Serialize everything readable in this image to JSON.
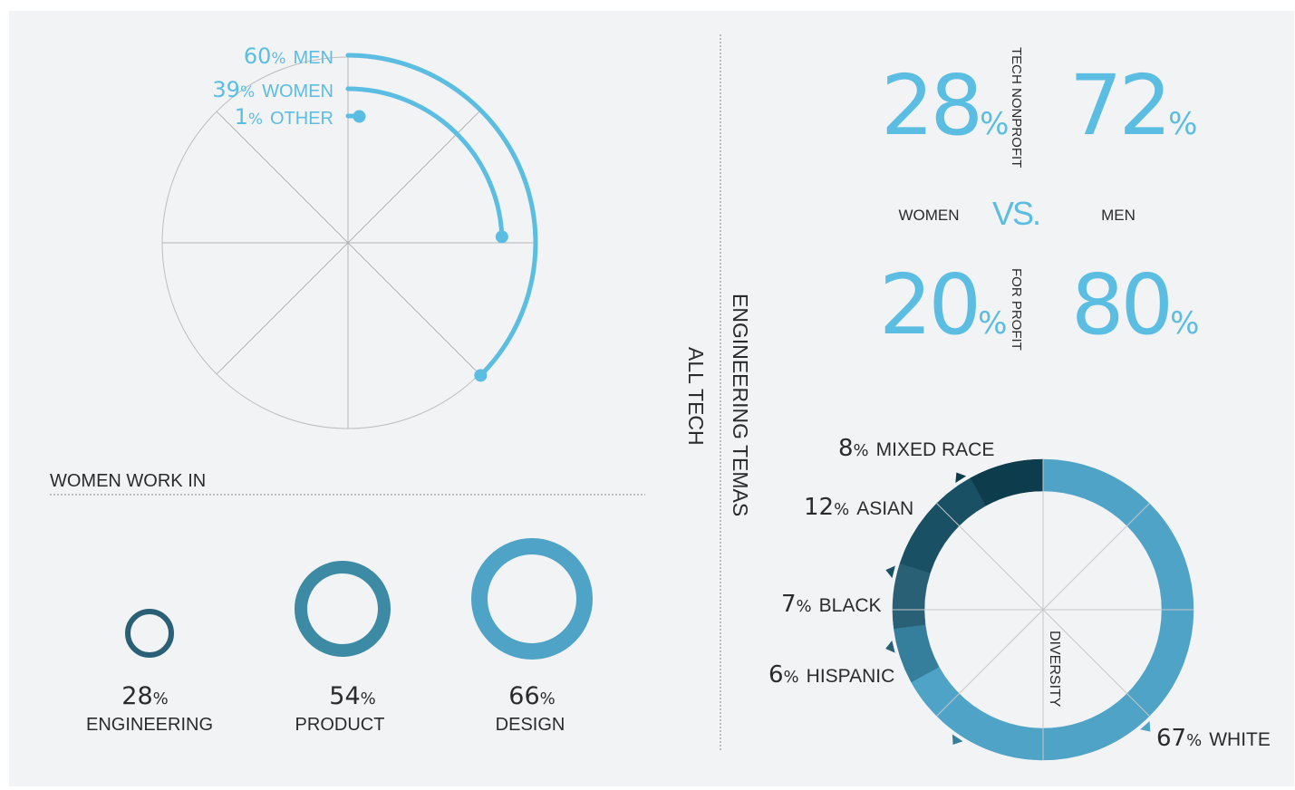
{
  "colors": {
    "background": "#f1f3f5",
    "accent": "#5bbde2",
    "dark_text": "#2b2b2b",
    "grid": "#b5b5b5"
  },
  "gender_radial": {
    "items": [
      {
        "value": 60,
        "pct": "%",
        "label": "MEN"
      },
      {
        "value": 39,
        "pct": "%",
        "label": "WOMEN"
      },
      {
        "value": 1,
        "pct": "%",
        "label": "OTHER"
      }
    ]
  },
  "women_work_in": {
    "heading": "WOMEN WORK IN",
    "rings": [
      {
        "value": 28,
        "pct": "%",
        "label": "ENGINEERING",
        "color": "#2a6075"
      },
      {
        "value": 54,
        "pct": "%",
        "label": "PRODUCT",
        "color": "#3c8aa3"
      },
      {
        "value": 66,
        "pct": "%",
        "label": "DESIGN",
        "color": "#4fa3c6"
      }
    ]
  },
  "vertical_labels": {
    "all_tech": "ALL TECH",
    "engineering": "ENGINEERING TEMAS"
  },
  "comparison": {
    "nonprofit_label": "TECH NONPROFIT",
    "forprofit_label": "FOR PROFIT",
    "vs": "VS.",
    "women_label": "WOMEN",
    "men_label": "MEN",
    "pct": "%",
    "nonprofit": {
      "women": 28,
      "men": 72
    },
    "forprofit": {
      "women": 20,
      "men": 80
    }
  },
  "chart_data": [
    {
      "type": "radial-bar",
      "series": [
        {
          "name": "MEN",
          "value": 60
        },
        {
          "name": "WOMEN",
          "value": 39
        },
        {
          "name": "OTHER",
          "value": 1
        }
      ]
    },
    {
      "type": "ring",
      "title": "WOMEN WORK IN",
      "categories": [
        "ENGINEERING",
        "PRODUCT",
        "DESIGN"
      ],
      "values": [
        28,
        54,
        66
      ]
    },
    {
      "type": "table",
      "columns": [
        "WOMEN",
        "MEN"
      ],
      "rows": [
        {
          "name": "TECH NONPROFIT",
          "values": [
            28,
            72
          ]
        },
        {
          "name": "FOR PROFIT",
          "values": [
            20,
            80
          ]
        }
      ]
    },
    {
      "type": "pie",
      "title": "DIVERSITY",
      "categories": [
        "WHITE",
        "HISPANIC",
        "BLACK",
        "ASIAN",
        "MIXED RACE"
      ],
      "values": [
        67,
        6,
        7,
        12,
        8
      ],
      "colors": [
        "#4fa3c6",
        "#367f9c",
        "#2a6075",
        "#1a5063",
        "#0d3c4c"
      ]
    }
  ]
}
